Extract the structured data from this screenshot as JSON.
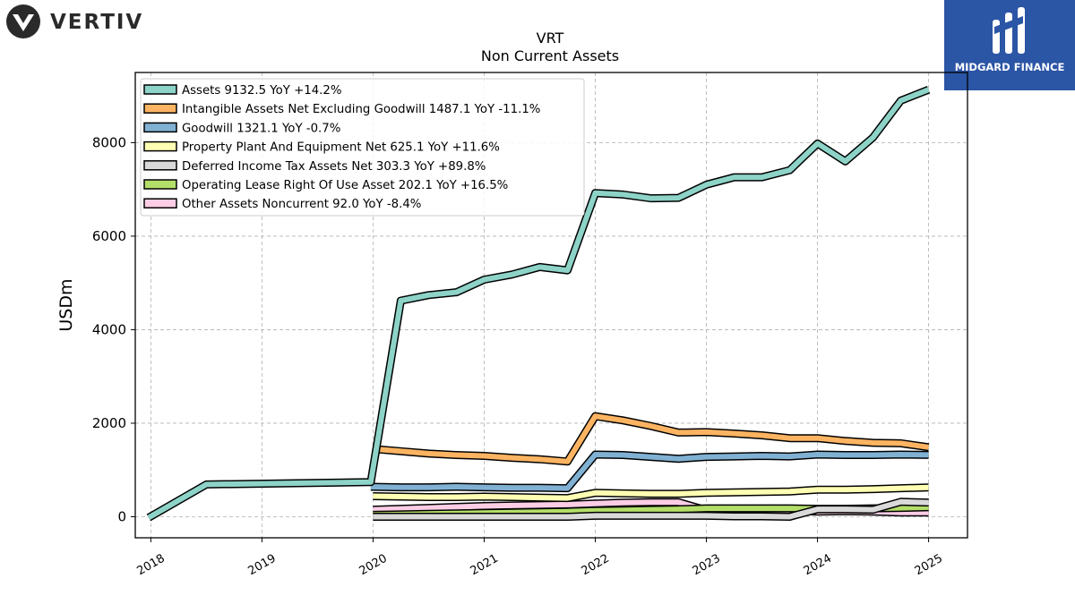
{
  "brand": {
    "left_logo_text": "VERTIV",
    "right_logo_text": "MIDGARD FINANCE"
  },
  "chart_data": {
    "type": "line",
    "title": "VRT",
    "subtitle": "Non Current  Assets",
    "ylabel": "USDm",
    "xlabel": "",
    "xlim": [
      2017.86,
      2025.35
    ],
    "ylim": [
      -450,
      9500
    ],
    "x_ticks": [
      2018,
      2019,
      2020,
      2021,
      2022,
      2023,
      2024,
      2025
    ],
    "x_tick_labels": [
      "2018",
      "2019",
      "2020",
      "2021",
      "2022",
      "2023",
      "2024",
      "2025"
    ],
    "y_ticks": [
      0,
      2000,
      4000,
      6000,
      8000
    ],
    "y_tick_labels": [
      "0",
      "2000",
      "4000",
      "6000",
      "8000"
    ],
    "grid": true,
    "legend_position": "top-left",
    "series": [
      {
        "name": "Assets",
        "legend": "Assets  9132.5 YoY +14.2%",
        "color": "#8dd3c7",
        "x": [
          2017.98,
          2018.5,
          2019.98,
          2020.25,
          2020.5,
          2020.75,
          2021.0,
          2021.25,
          2021.5,
          2021.75,
          2022.0,
          2022.25,
          2022.5,
          2022.75,
          2023.0,
          2023.25,
          2023.5,
          2023.75,
          2024.0,
          2024.25,
          2024.5,
          2024.75,
          2025.0
        ],
        "y": [
          -20,
          690,
          740,
          4620,
          4740,
          4800,
          5070,
          5180,
          5340,
          5270,
          6920,
          6890,
          6810,
          6820,
          7100,
          7260,
          7260,
          7410,
          7980,
          7600,
          8110,
          8900,
          9132.5
        ]
      },
      {
        "name": "Intangible Assets Net Excluding Goodwill",
        "legend": "Intangible Assets Net Excluding Goodwill  1487.1 YoY -11.1%",
        "color": "#fdb462",
        "x": [
          2020.0,
          2020.25,
          2020.5,
          2020.75,
          2021.0,
          2021.25,
          2021.5,
          2021.75,
          2022.0,
          2022.25,
          2022.5,
          2022.75,
          2023.0,
          2023.25,
          2023.5,
          2023.75,
          2024.0,
          2024.25,
          2024.5,
          2024.75,
          2025.0
        ],
        "y": [
          1450,
          1400,
          1350,
          1320,
          1300,
          1260,
          1230,
          1180,
          2150,
          2060,
          1940,
          1800,
          1810,
          1780,
          1740,
          1680,
          1680,
          1620,
          1580,
          1570,
          1487.1
        ]
      },
      {
        "name": "Goodwill",
        "legend": "Goodwill  1321.1 YoY -0.7%",
        "color": "#80b1d3",
        "x": [
          2019.98,
          2020.25,
          2020.5,
          2020.75,
          2021.0,
          2021.25,
          2021.5,
          2021.75,
          2022.0,
          2022.25,
          2022.5,
          2022.75,
          2023.0,
          2023.25,
          2023.5,
          2023.75,
          2024.0,
          2024.25,
          2024.5,
          2024.75,
          2025.0
        ],
        "y": [
          640,
          630,
          630,
          640,
          630,
          620,
          620,
          610,
          1330,
          1320,
          1280,
          1240,
          1280,
          1290,
          1300,
          1290,
          1330,
          1320,
          1320,
          1330,
          1321.1
        ]
      },
      {
        "name": "Property Plant And Equipment Net",
        "legend": "Property Plant And Equipment Net  625.1 YoY +11.6%",
        "color": "#ffffb3",
        "x": [
          2020.0,
          2020.25,
          2020.5,
          2020.75,
          2021.0,
          2021.25,
          2021.5,
          2021.75,
          2022.0,
          2022.25,
          2022.5,
          2022.75,
          2023.0,
          2023.25,
          2023.5,
          2023.75,
          2024.0,
          2024.25,
          2024.5,
          2024.75,
          2025.0
        ],
        "y": [
          440,
          430,
          420,
          420,
          430,
          420,
          410,
          400,
          510,
          500,
          490,
          490,
          510,
          520,
          530,
          540,
          580,
          580,
          590,
          610,
          625.1
        ]
      },
      {
        "name": "Deferred Income Tax Assets Net",
        "legend": "Deferred Income Tax Assets Net  303.3 YoY +89.8%",
        "color": "#d9d9d9",
        "x": [
          2020.0,
          2020.25,
          2020.5,
          2020.75,
          2021.0,
          2021.25,
          2021.5,
          2021.75,
          2022.0,
          2022.25,
          2022.5,
          2022.75,
          2023.0,
          2023.25,
          2023.5,
          2023.75,
          2024.0,
          2024.25,
          2024.5,
          2024.75,
          2025.0
        ],
        "y": [
          0,
          0,
          0,
          0,
          0,
          0,
          0,
          0,
          20,
          20,
          20,
          20,
          20,
          10,
          10,
          0,
          160,
          160,
          150,
          320,
          303.3
        ]
      },
      {
        "name": "Operating Lease Right Of Use Asset",
        "legend": "Operating Lease Right Of Use Asset  202.1 YoY +16.5%",
        "color": "#b3de69",
        "x": [
          2020.0,
          2020.25,
          2020.5,
          2020.75,
          2021.0,
          2021.25,
          2021.5,
          2021.75,
          2022.0,
          2022.25,
          2022.5,
          2022.75,
          2023.0,
          2023.25,
          2023.5,
          2023.75,
          2024.0,
          2024.25,
          2024.5,
          2024.75,
          2025.0
        ],
        "y": [
          40,
          50,
          60,
          70,
          80,
          90,
          100,
          110,
          130,
          140,
          150,
          160,
          180,
          180,
          180,
          180,
          170,
          170,
          180,
          190,
          202.1
        ]
      },
      {
        "name": "Other Assets Noncurrent",
        "legend": "Other Assets Noncurrent  92.0 YoY -8.4%",
        "color": "#fccde5",
        "x": [
          2020.0,
          2020.25,
          2020.5,
          2020.75,
          2021.0,
          2021.25,
          2021.5,
          2021.75,
          2022.0,
          2022.25,
          2022.5,
          2022.75,
          2023.0,
          2023.25,
          2023.5,
          2023.75,
          2024.0,
          2024.25,
          2024.5,
          2024.75,
          2025.0
        ],
        "y": [
          150,
          170,
          190,
          210,
          230,
          240,
          250,
          260,
          280,
          300,
          310,
          310,
          140,
          130,
          130,
          130,
          110,
          120,
          110,
          90,
          92.0
        ]
      }
    ]
  }
}
